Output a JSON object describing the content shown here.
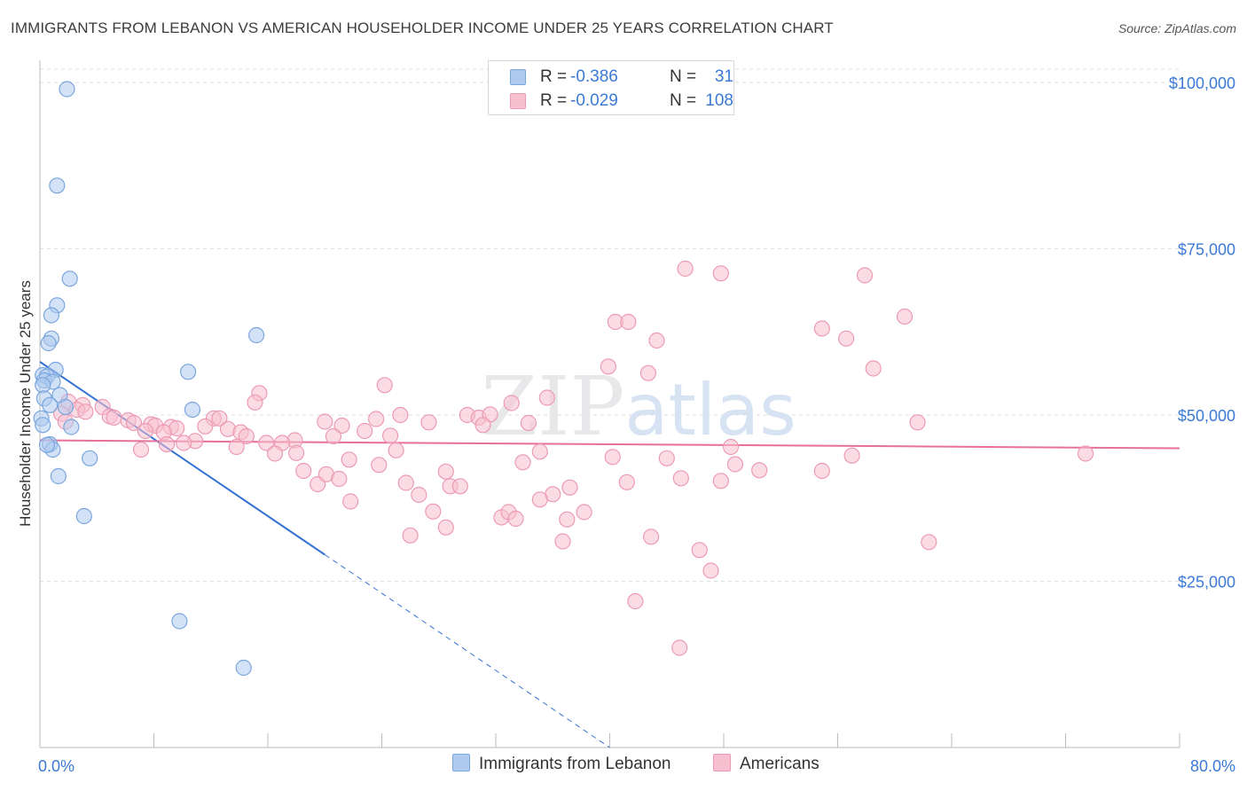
{
  "header": {
    "title": "IMMIGRANTS FROM LEBANON VS AMERICAN HOUSEHOLDER INCOME UNDER 25 YEARS CORRELATION CHART",
    "source": "Source: ZipAtlas.com"
  },
  "watermark": "ZIPatlas",
  "legend_top": [
    {
      "r_label": "R =",
      "r_value": "-0.386",
      "n_label": "N =",
      "n_value": "31"
    },
    {
      "r_label": "R =",
      "r_value": "-0.029",
      "n_label": "N =",
      "n_value": "108"
    }
  ],
  "legend_bottom": [
    "Immigrants from Lebanon",
    "Americans"
  ],
  "colors": {
    "blue_fill": "#aecbef",
    "blue_stroke": "#7aa6de",
    "blue_line": "#3572d4",
    "pink_fill": "#f7bfd0",
    "pink_stroke": "#ec9ab4",
    "pink_line": "#e8709a",
    "tick_label": "#3c7ad6",
    "grid": "#dddddd"
  },
  "chart_data": {
    "type": "scatter",
    "title": "IMMIGRANTS FROM LEBANON VS AMERICAN HOUSEHOLDER INCOME UNDER 25 YEARS CORRELATION CHART",
    "xlabel": "",
    "ylabel": "Householder Income Under 25 years",
    "xlim": [
      0,
      80
    ],
    "ylim": [
      0,
      102000
    ],
    "x_tick_labels": [
      "0.0%",
      "80.0%"
    ],
    "y_tick_values": [
      25000,
      50000,
      75000,
      100000
    ],
    "y_tick_labels": [
      "$25,000",
      "$50,000",
      "$75,000",
      "$100,000"
    ],
    "grid": "horizontal dashed",
    "series": [
      {
        "name": "Immigrants from Lebanon",
        "color": "blue",
        "r": -0.386,
        "n": 31,
        "points": [
          [
            1.9,
            99000
          ],
          [
            1.2,
            84500
          ],
          [
            2.1,
            70500
          ],
          [
            1.2,
            66500
          ],
          [
            0.8,
            65000
          ],
          [
            0.8,
            61500
          ],
          [
            0.6,
            60800
          ],
          [
            15.2,
            62000
          ],
          [
            1.1,
            56800
          ],
          [
            10.4,
            56500
          ],
          [
            0.2,
            56000
          ],
          [
            0.5,
            55800
          ],
          [
            0.3,
            55200
          ],
          [
            0.9,
            55000
          ],
          [
            0.2,
            54500
          ],
          [
            1.4,
            53000
          ],
          [
            0.3,
            52500
          ],
          [
            0.7,
            51500
          ],
          [
            10.7,
            50800
          ],
          [
            1.8,
            51200
          ],
          [
            0.1,
            49500
          ],
          [
            0.2,
            48500
          ],
          [
            2.2,
            48200
          ],
          [
            0.7,
            45600
          ],
          [
            0.9,
            44800
          ],
          [
            3.5,
            43500
          ],
          [
            1.3,
            40800
          ],
          [
            3.1,
            34800
          ],
          [
            9.8,
            19000
          ],
          [
            14.3,
            12000
          ],
          [
            0.5,
            45500
          ]
        ],
        "trend": {
          "x": [
            0,
            20
          ],
          "y": [
            58000,
            29000
          ],
          "dashed_to": [
            40,
            0
          ]
        }
      },
      {
        "name": "Americans",
        "color": "pink",
        "r": -0.029,
        "n": 108,
        "points": [
          [
            45.3,
            72000
          ],
          [
            47.8,
            71300
          ],
          [
            57.9,
            71000
          ],
          [
            60.7,
            64800
          ],
          [
            40.4,
            64000
          ],
          [
            41.3,
            64000
          ],
          [
            54.9,
            63000
          ],
          [
            56.6,
            61500
          ],
          [
            43.3,
            61200
          ],
          [
            39.9,
            57300
          ],
          [
            42.7,
            56300
          ],
          [
            58.5,
            57000
          ],
          [
            24.2,
            54500
          ],
          [
            35.6,
            52600
          ],
          [
            15.4,
            53300
          ],
          [
            15.1,
            51900
          ],
          [
            33.1,
            51800
          ],
          [
            2.0,
            52000
          ],
          [
            3.0,
            51500
          ],
          [
            4.4,
            51200
          ],
          [
            2.6,
            50800
          ],
          [
            3.2,
            50500
          ],
          [
            1.5,
            50200
          ],
          [
            4.9,
            49800
          ],
          [
            5.2,
            49600
          ],
          [
            1.8,
            49000
          ],
          [
            6.2,
            49200
          ],
          [
            6.6,
            48800
          ],
          [
            7.8,
            48600
          ],
          [
            8.1,
            48400
          ],
          [
            9.2,
            48200
          ],
          [
            9.6,
            48000
          ],
          [
            12.2,
            49500
          ],
          [
            12.6,
            49500
          ],
          [
            20.0,
            49000
          ],
          [
            23.6,
            49400
          ],
          [
            25.3,
            50000
          ],
          [
            30.0,
            50000
          ],
          [
            30.8,
            49600
          ],
          [
            31.6,
            50100
          ],
          [
            27.3,
            48900
          ],
          [
            21.2,
            48400
          ],
          [
            34.3,
            48800
          ],
          [
            61.6,
            48900
          ],
          [
            11.6,
            48300
          ],
          [
            13.2,
            47900
          ],
          [
            7.4,
            47600
          ],
          [
            8.7,
            47400
          ],
          [
            14.1,
            47400
          ],
          [
            14.5,
            46800
          ],
          [
            17.9,
            46200
          ],
          [
            20.6,
            46800
          ],
          [
            22.8,
            47600
          ],
          [
            10.9,
            46100
          ],
          [
            10.1,
            45800
          ],
          [
            15.9,
            45800
          ],
          [
            17.0,
            45800
          ],
          [
            16.5,
            44200
          ],
          [
            18.0,
            44300
          ],
          [
            23.8,
            42500
          ],
          [
            21.7,
            43300
          ],
          [
            25.0,
            44700
          ],
          [
            35.1,
            44500
          ],
          [
            40.2,
            43700
          ],
          [
            44.0,
            43500
          ],
          [
            48.5,
            45200
          ],
          [
            48.8,
            42600
          ],
          [
            54.9,
            41600
          ],
          [
            57.0,
            43900
          ],
          [
            50.5,
            41700
          ],
          [
            73.4,
            44200
          ],
          [
            18.5,
            41600
          ],
          [
            19.5,
            39600
          ],
          [
            20.1,
            41100
          ],
          [
            21.0,
            40400
          ],
          [
            28.5,
            41500
          ],
          [
            25.7,
            39800
          ],
          [
            26.6,
            38000
          ],
          [
            28.8,
            39300
          ],
          [
            29.5,
            39300
          ],
          [
            33.9,
            42900
          ],
          [
            36.0,
            38100
          ],
          [
            37.2,
            39100
          ],
          [
            41.2,
            39900
          ],
          [
            45.0,
            40500
          ],
          [
            47.8,
            40100
          ],
          [
            21.8,
            37000
          ],
          [
            35.1,
            37300
          ],
          [
            27.6,
            35500
          ],
          [
            28.5,
            33100
          ],
          [
            32.4,
            34600
          ],
          [
            32.9,
            35400
          ],
          [
            33.4,
            34400
          ],
          [
            37.0,
            34300
          ],
          [
            38.2,
            35400
          ],
          [
            26.0,
            31900
          ],
          [
            36.7,
            31000
          ],
          [
            42.9,
            31700
          ],
          [
            46.3,
            29700
          ],
          [
            62.4,
            30900
          ],
          [
            47.1,
            26600
          ],
          [
            41.8,
            22000
          ],
          [
            44.9,
            15000
          ],
          [
            8.9,
            45600
          ],
          [
            7.1,
            44800
          ],
          [
            13.8,
            45200
          ],
          [
            24.6,
            46900
          ],
          [
            31.1,
            48500
          ]
        ],
        "trend": {
          "x": [
            0,
            80
          ],
          "y": [
            46200,
            45000
          ]
        }
      }
    ]
  }
}
